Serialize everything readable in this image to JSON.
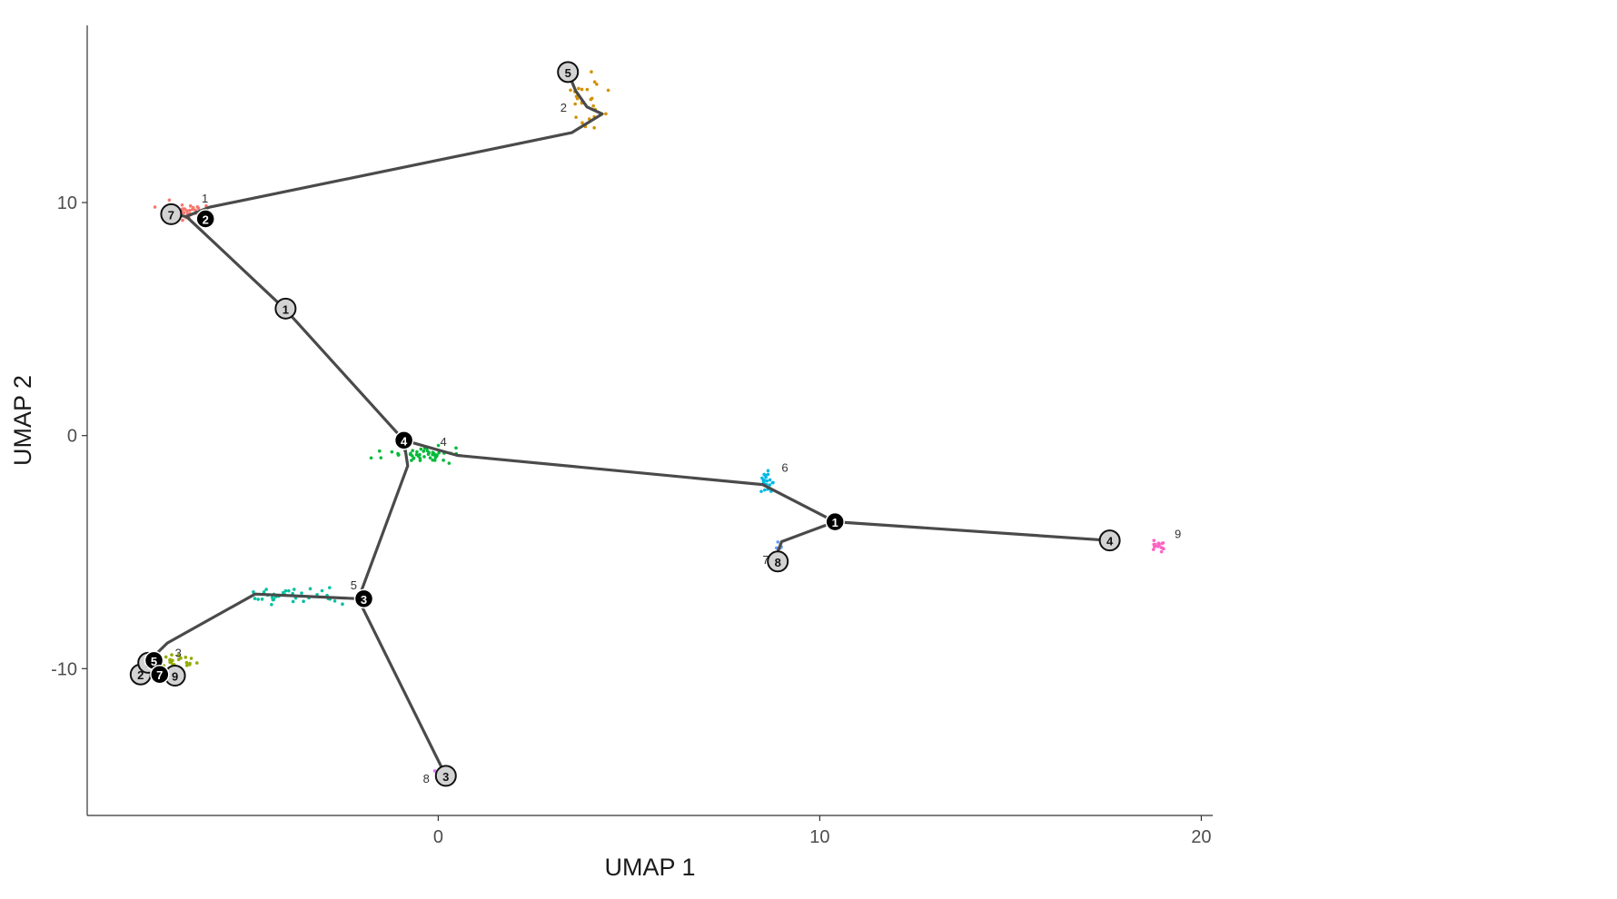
{
  "chart_data": {
    "type": "scatter",
    "title": "",
    "xlabel": "UMAP 1",
    "ylabel": "UMAP 2",
    "xlim": [
      -9.2,
      20.3
    ],
    "ylim": [
      -16.3,
      17.6
    ],
    "x_ticks": [
      0,
      10,
      20
    ],
    "y_ticks": [
      -10,
      0,
      10
    ],
    "x_tick_labels": [
      "0",
      "10",
      "20"
    ],
    "y_tick_labels": [
      "-10",
      "0",
      "10"
    ],
    "grid": false,
    "legend": "none",
    "clusters": [
      {
        "label": "1",
        "color": "#F8766D",
        "center": [
          -6.6,
          9.6
        ],
        "spread": [
          0.45,
          0.32
        ],
        "n": 34,
        "label_pos": [
          -6.2,
          10.0
        ]
      },
      {
        "label": "2",
        "color": "#D39200",
        "center": [
          3.9,
          14.4
        ],
        "spread": [
          0.35,
          0.8
        ],
        "n": 26,
        "label_pos": [
          3.2,
          13.9
        ]
      },
      {
        "label": "3",
        "color": "#93AA00",
        "center": [
          -6.9,
          -9.7
        ],
        "spread": [
          0.4,
          0.22
        ],
        "n": 22,
        "label_pos": [
          -6.9,
          -9.5
        ]
      },
      {
        "label": "4",
        "color": "#00BA38",
        "center": [
          -0.4,
          -0.8
        ],
        "spread": [
          0.75,
          0.22
        ],
        "n": 48,
        "label_pos": [
          0.05,
          -0.45
        ]
      },
      {
        "label": "5",
        "color": "#00C19F",
        "center": [
          -3.6,
          -6.9
        ],
        "spread": [
          1.0,
          0.22
        ],
        "n": 34,
        "label_pos": [
          -2.3,
          -6.6
        ]
      },
      {
        "label": "6",
        "color": "#00B9E3",
        "center": [
          8.6,
          -2.0
        ],
        "spread": [
          0.12,
          0.35
        ],
        "n": 22,
        "label_pos": [
          9.0,
          -1.55
        ]
      },
      {
        "label": "7",
        "color": "#619CFF",
        "center": [
          8.95,
          -4.8
        ],
        "spread": [
          0.06,
          0.18
        ],
        "n": 6,
        "label_pos": [
          8.5,
          -5.5
        ]
      },
      {
        "label": "8",
        "color": "#DB72FB",
        "center": [
          0.0,
          -14.4
        ],
        "spread": [
          0.05,
          0.06
        ],
        "n": 3,
        "label_pos": [
          -0.4,
          -14.9
        ]
      },
      {
        "label": "9",
        "color": "#FF61C3",
        "center": [
          18.9,
          -4.75
        ],
        "spread": [
          0.14,
          0.14
        ],
        "n": 16,
        "label_pos": [
          19.3,
          -4.4
        ]
      }
    ],
    "trajectory_segments": [
      [
        [
          3.4,
          15.6
        ],
        [
          3.6,
          14.8
        ],
        [
          3.9,
          14.1
        ],
        [
          4.3,
          13.8
        ],
        [
          3.5,
          13.0
        ],
        [
          -6.0,
          9.8
        ],
        [
          -6.6,
          9.4
        ],
        [
          -7.0,
          9.5
        ]
      ],
      [
        [
          -6.6,
          9.4
        ],
        [
          -4.0,
          5.4
        ],
        [
          -0.9,
          -0.2
        ],
        [
          0.5,
          -0.85
        ],
        [
          8.5,
          -2.1
        ],
        [
          10.4,
          -3.7
        ],
        [
          17.6,
          -4.5
        ]
      ],
      [
        [
          10.4,
          -3.7
        ],
        [
          9.0,
          -4.55
        ],
        [
          8.8,
          -5.4
        ]
      ],
      [
        [
          -0.9,
          -0.2
        ],
        [
          -0.8,
          -1.3
        ],
        [
          -2.0,
          -6.6
        ],
        [
          -2.1,
          -7.0
        ],
        [
          -4.8,
          -6.8
        ],
        [
          -7.1,
          -8.9
        ],
        [
          -7.6,
          -9.7
        ],
        [
          -7.9,
          -10.2
        ]
      ],
      [
        [
          -7.6,
          -9.7
        ],
        [
          -7.3,
          -10.25
        ],
        [
          -6.9,
          -10.3
        ]
      ],
      [
        [
          -2.1,
          -7.0
        ],
        [
          0.2,
          -14.6
        ]
      ]
    ],
    "branch_nodes": [
      {
        "label": "1",
        "x": 10.4,
        "y": -3.7
      },
      {
        "label": "2",
        "x": -6.1,
        "y": 9.3
      },
      {
        "label": "3",
        "x": -1.95,
        "y": -7.0
      },
      {
        "label": "4",
        "x": -0.9,
        "y": -0.2
      },
      {
        "label": "5",
        "x": -7.45,
        "y": -9.65
      },
      {
        "label": "7",
        "x": -7.3,
        "y": -10.25
      }
    ],
    "leaf_nodes": [
      {
        "label": "1",
        "x": -4.0,
        "y": 5.45
      },
      {
        "label": "2",
        "x": -7.8,
        "y": -10.25
      },
      {
        "label": "3",
        "x": 0.2,
        "y": -14.6
      },
      {
        "label": "4",
        "x": 17.6,
        "y": -4.5
      },
      {
        "label": "5",
        "x": 3.4,
        "y": 15.6
      },
      {
        "label": "6",
        "x": -7.6,
        "y": -9.75
      },
      {
        "label": "7",
        "x": -7.0,
        "y": 9.5
      },
      {
        "label": "8",
        "x": 8.9,
        "y": -5.4
      },
      {
        "label": "9",
        "x": -6.9,
        "y": -10.3
      }
    ]
  }
}
